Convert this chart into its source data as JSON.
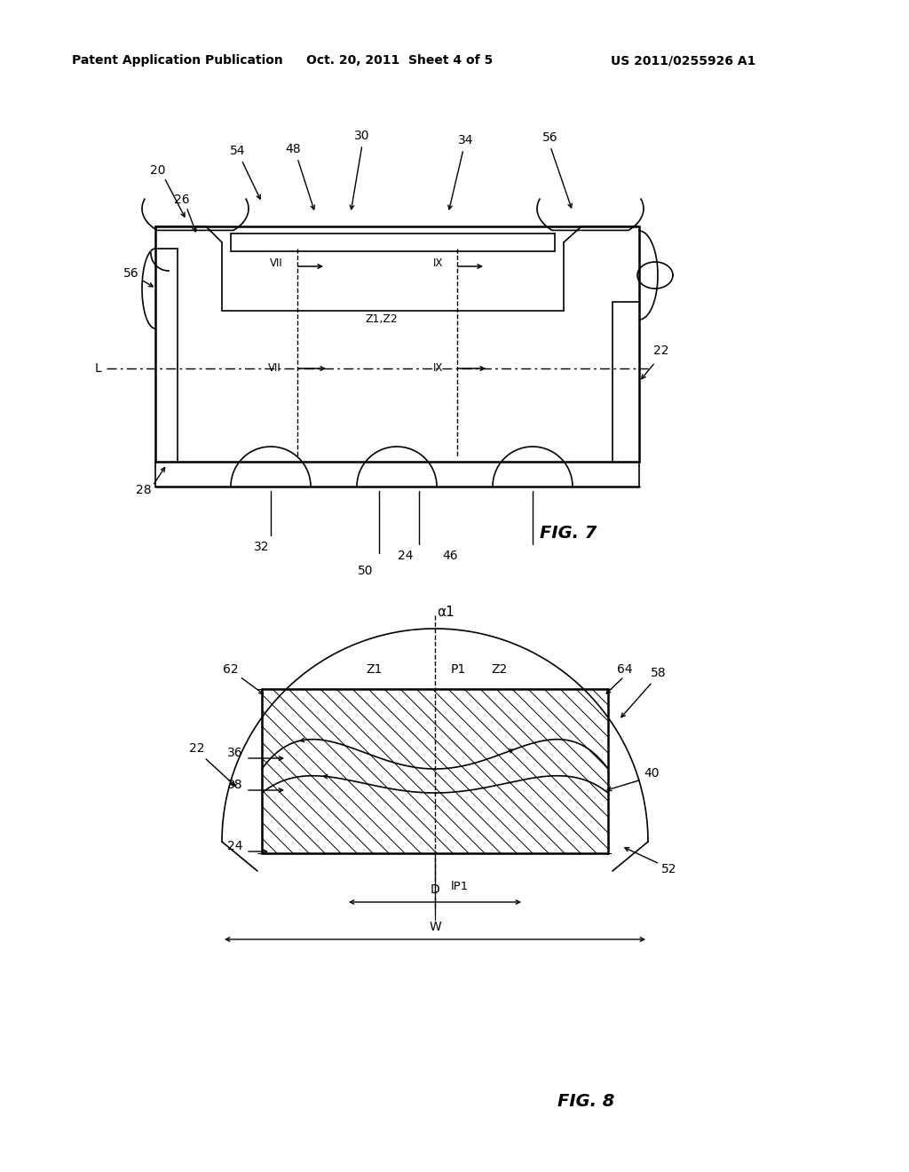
{
  "background_color": "#ffffff",
  "header_left": "Patent Application Publication",
  "header_center": "Oct. 20, 2011  Sheet 4 of 5",
  "header_right": "US 2011/0255926 A1",
  "fig7_label": "FIG. 7",
  "fig8_label": "FIG. 8"
}
